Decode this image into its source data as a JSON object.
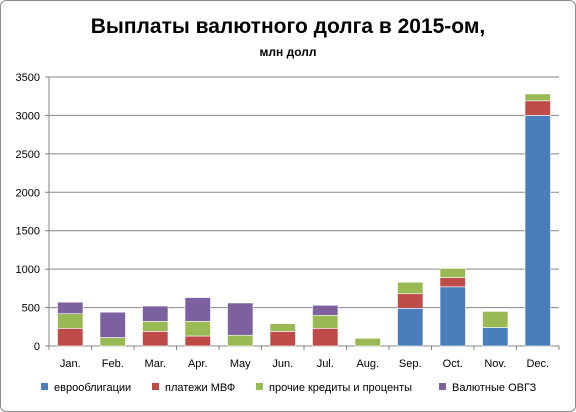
{
  "chart_data": {
    "type": "bar",
    "stacked": true,
    "title": "Выплаты валютного долга в 2015-ом,",
    "subtitle": "млн долл",
    "categories": [
      "Jan.",
      "Feb.",
      "Mar.",
      "Apr.",
      "May",
      "Jun.",
      "Jul.",
      "Aug.",
      "Sep.",
      "Oct.",
      "Nov.",
      "Dec."
    ],
    "ylim": [
      0,
      3500
    ],
    "yticks": [
      0,
      500,
      1000,
      1500,
      2000,
      2500,
      3000,
      3500
    ],
    "grid": true,
    "legend_position": "bottom",
    "series": [
      {
        "name": "еврооблигации",
        "color": "#4a7ebb",
        "values": [
          0,
          0,
          0,
          0,
          0,
          0,
          0,
          0,
          490,
          770,
          240,
          3000
        ]
      },
      {
        "name": "платежи МВФ",
        "color": "#be4b48",
        "values": [
          230,
          0,
          190,
          130,
          0,
          190,
          230,
          0,
          190,
          120,
          0,
          190
        ]
      },
      {
        "name": "прочие кредиты и проценты",
        "color": "#98b954",
        "values": [
          190,
          110,
          130,
          190,
          140,
          100,
          170,
          100,
          150,
          120,
          210,
          90
        ]
      },
      {
        "name": "Валютные ОВГЗ",
        "color": "#7d60a0",
        "values": [
          150,
          330,
          200,
          310,
          420,
          0,
          130,
          0,
          0,
          0,
          0,
          0
        ]
      }
    ]
  }
}
